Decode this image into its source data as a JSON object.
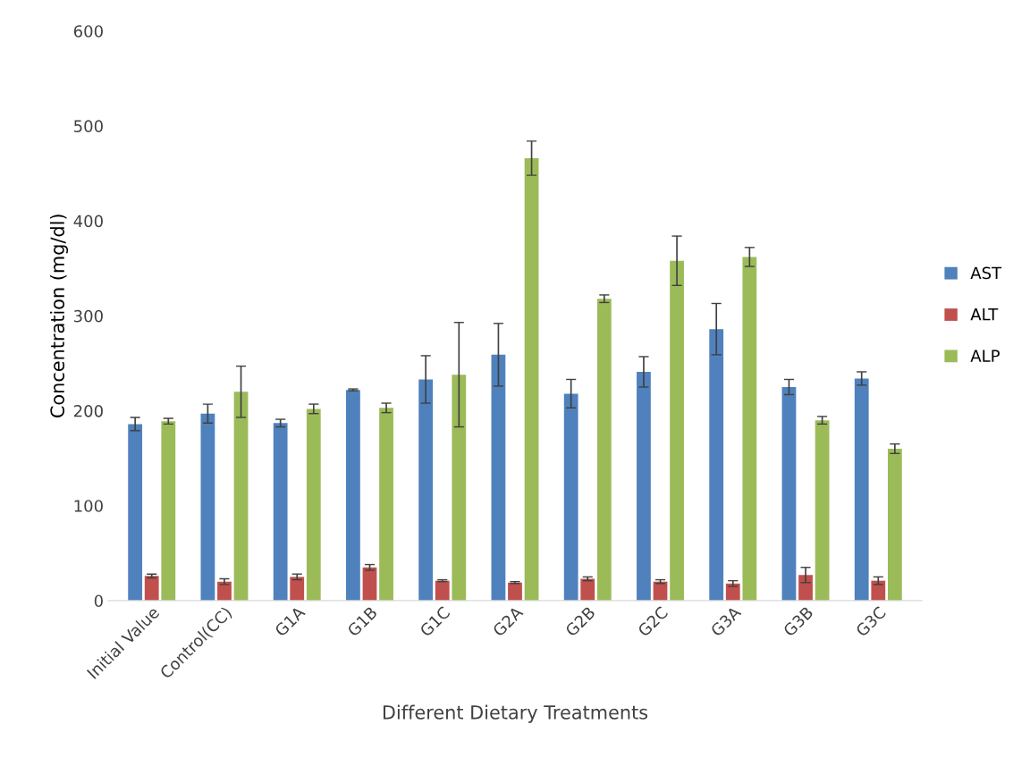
{
  "chart_data": {
    "type": "bar",
    "xlabel": "Different Dietary Treatments",
    "ylabel": "Concentration (mg/dl)",
    "categories": [
      "Initial Value",
      "Control(CC)",
      "G1A",
      "G1B",
      "G1C",
      "G2A",
      "G2B",
      "G2C",
      "G3A",
      "G3B",
      "G3C"
    ],
    "series": [
      {
        "name": "AST",
        "color": "#4f81bd",
        "values": [
          186,
          197,
          187,
          222,
          233,
          259,
          218,
          241,
          286,
          225,
          234
        ],
        "errors": [
          7,
          10,
          4,
          1,
          25,
          33,
          15,
          16,
          27,
          8,
          7
        ]
      },
      {
        "name": "ALT",
        "color": "#c0504d",
        "values": [
          26,
          20,
          25,
          35,
          21,
          19,
          23,
          20,
          18,
          27,
          21
        ],
        "errors": [
          2,
          3,
          3,
          3,
          1,
          1,
          2,
          2,
          3,
          8,
          4
        ]
      },
      {
        "name": "ALP",
        "color": "#9bbb59",
        "values": [
          189,
          220,
          202,
          203,
          238,
          466,
          318,
          358,
          362,
          190,
          160
        ],
        "errors": [
          3,
          27,
          5,
          5,
          55,
          18,
          4,
          26,
          10,
          4,
          5
        ]
      }
    ],
    "ylim": [
      0,
      600
    ],
    "yticks": [
      0,
      100,
      200,
      300,
      400,
      500,
      600
    ],
    "grid": false,
    "legend": "right"
  }
}
